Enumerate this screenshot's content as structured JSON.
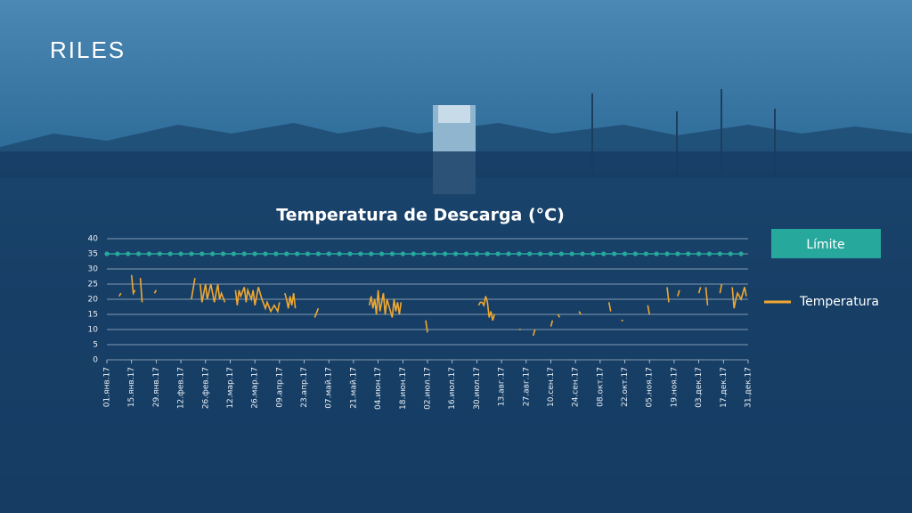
{
  "header": {
    "title": "RILES"
  },
  "chart_data": {
    "type": "line",
    "title": "Temperatura de Descarga (°C)",
    "xlim": [
      0,
      364
    ],
    "xticks": [
      {
        "value": 0,
        "label": "01.янв.17"
      },
      {
        "value": 14,
        "label": "15.янв.17"
      },
      {
        "value": 28,
        "label": "29.янв.17"
      },
      {
        "value": 42,
        "label": "12.фев.17"
      },
      {
        "value": 56,
        "label": "26.фев.17"
      },
      {
        "value": 70,
        "label": "12.мар.17"
      },
      {
        "value": 84,
        "label": "26.мар.17"
      },
      {
        "value": 98,
        "label": "09.апр.17"
      },
      {
        "value": 112,
        "label": "23.апр.17"
      },
      {
        "value": 126,
        "label": "07.май.17"
      },
      {
        "value": 140,
        "label": "21.май.17"
      },
      {
        "value": 154,
        "label": "04.июн.17"
      },
      {
        "value": 168,
        "label": "18.июн.17"
      },
      {
        "value": 182,
        "label": "02.июл.17"
      },
      {
        "value": 196,
        "label": "16.июл.17"
      },
      {
        "value": 210,
        "label": "30.июл.17"
      },
      {
        "value": 224,
        "label": "13.авг.17"
      },
      {
        "value": 238,
        "label": "27.авг.17"
      },
      {
        "value": 252,
        "label": "10.сен.17"
      },
      {
        "value": 266,
        "label": "24.сен.17"
      },
      {
        "value": 280,
        "label": "08.окт.17"
      },
      {
        "value": 294,
        "label": "22.окт.17"
      },
      {
        "value": 308,
        "label": "05.ноя.17"
      },
      {
        "value": 322,
        "label": "19.ноя.17"
      },
      {
        "value": 336,
        "label": "03.дек.17"
      },
      {
        "value": 350,
        "label": "17.дек.17"
      },
      {
        "value": 364,
        "label": "31.дек.17"
      }
    ],
    "ylim": [
      0,
      40
    ],
    "yticks": [
      0,
      5,
      10,
      15,
      20,
      25,
      30,
      35,
      40
    ],
    "grid": true,
    "series": [
      {
        "name": "Límite",
        "color": "#27a89c",
        "x": [
          0,
          6,
          12,
          18,
          24,
          30,
          36,
          42,
          48,
          54,
          60,
          66,
          72,
          78,
          84,
          90,
          96,
          102,
          108,
          114,
          120,
          126,
          132,
          138,
          144,
          150,
          156,
          162,
          168,
          174,
          180,
          186,
          192,
          198,
          204,
          210,
          216,
          222,
          228,
          234,
          240,
          246,
          252,
          258,
          264,
          270,
          276,
          282,
          288,
          294,
          300,
          306,
          312,
          318,
          324,
          330,
          336,
          342,
          348,
          354,
          360
        ],
        "values": [
          35,
          35,
          35,
          35,
          35,
          35,
          35,
          35,
          35,
          35,
          35,
          35,
          35,
          35,
          35,
          35,
          35,
          35,
          35,
          35,
          35,
          35,
          35,
          35,
          35,
          35,
          35,
          35,
          35,
          35,
          35,
          35,
          35,
          35,
          35,
          35,
          35,
          35,
          35,
          35,
          35,
          35,
          35,
          35,
          35,
          35,
          35,
          35,
          35,
          35,
          35,
          35,
          35,
          35,
          35,
          35,
          35,
          35,
          35,
          35,
          35
        ]
      },
      {
        "name": "Temperatura",
        "color": "#f0a830",
        "x": [
          7,
          8,
          11,
          14,
          15,
          16,
          17,
          19,
          20,
          23,
          27,
          28,
          35,
          48,
          50,
          52,
          53,
          54,
          56,
          57,
          59,
          61,
          63,
          64,
          65,
          67,
          70,
          73,
          74,
          75,
          76,
          78,
          79,
          80,
          82,
          83,
          84,
          86,
          88,
          90,
          91,
          93,
          95,
          97,
          98,
          98.5,
          99,
          100,
          101,
          102,
          103,
          104,
          105,
          106,
          107,
          110,
          118,
          120,
          130,
          149,
          150,
          151,
          152,
          153,
          154,
          155,
          156,
          157,
          158,
          159,
          160,
          162,
          163,
          164,
          165,
          166,
          167,
          175,
          181,
          182,
          195,
          211,
          212,
          213,
          214,
          215,
          216,
          217,
          218,
          219,
          220,
          225,
          234,
          235,
          238,
          242,
          243,
          248,
          252,
          253,
          255,
          256,
          257,
          262,
          268,
          269,
          275,
          285,
          286,
          290,
          292,
          293,
          300,
          307,
          308,
          312,
          318,
          319,
          322,
          324,
          325,
          330,
          336,
          337,
          339,
          340,
          341,
          345,
          348,
          349,
          352,
          355,
          356,
          357,
          358,
          360,
          362,
          363
        ],
        "values": [
          21,
          22,
          null,
          28,
          22,
          23,
          null,
          27,
          19,
          null,
          22,
          23,
          null,
          20,
          27,
          null,
          25,
          19,
          25,
          20,
          25,
          19,
          25,
          20,
          22,
          19,
          null,
          23,
          18,
          23,
          21,
          24,
          19,
          23,
          20,
          23,
          18,
          24,
          20,
          17,
          19,
          16,
          18,
          16,
          19,
          null,
          15,
          null,
          22,
          20,
          17,
          21,
          18,
          22,
          17,
          null,
          14,
          17,
          null,
          18,
          21,
          17,
          20,
          15,
          23,
          16,
          19,
          22,
          15,
          20,
          18,
          14,
          20,
          16,
          19,
          15,
          19,
          null,
          13,
          9,
          null,
          18,
          19,
          19,
          18,
          21,
          19,
          14,
          16,
          13,
          15,
          null,
          10,
          10,
          null,
          8,
          10,
          null,
          11,
          13,
          null,
          15,
          14,
          null,
          16,
          15,
          null,
          19,
          16,
          null,
          13,
          13,
          null,
          18,
          15,
          null,
          24,
          19,
          null,
          21,
          23,
          null,
          22,
          24,
          null,
          24,
          18,
          null,
          22,
          25,
          null,
          24,
          17,
          20,
          22,
          20,
          24,
          21
        ]
      }
    ]
  }
}
